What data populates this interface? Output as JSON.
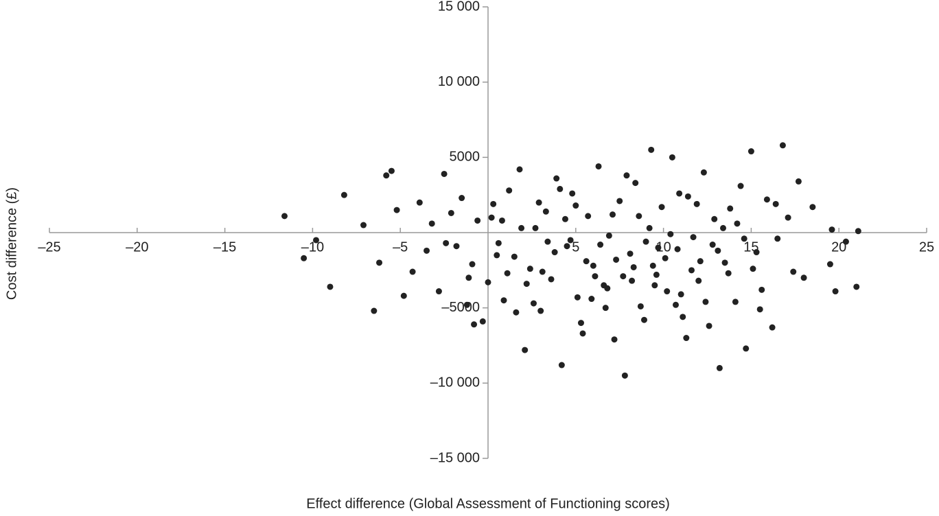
{
  "chart_data": {
    "type": "scatter",
    "x_label": "Effect difference (Global Assessment of Functioning scores)",
    "y_label": "Cost difference (£)",
    "color": "#222222",
    "xlim": [
      -25,
      25
    ],
    "ylim": [
      -15000,
      15000
    ],
    "xticks": [
      {
        "value": -25,
        "label": "–25"
      },
      {
        "value": -20,
        "label": "–20"
      },
      {
        "value": -15,
        "label": "–15"
      },
      {
        "value": -10,
        "label": "–10"
      },
      {
        "value": -5,
        "label": "–5"
      },
      5,
      10,
      15,
      20,
      25
    ],
    "yticks": [
      {
        "value": 15000,
        "label": "15 000"
      },
      {
        "value": 10000,
        "label": "10 000"
      },
      5000,
      {
        "value": -5000,
        "label": "–5000"
      },
      {
        "value": -10000,
        "label": "–10 000"
      },
      {
        "value": -15000,
        "label": "–15 000"
      }
    ],
    "x": [
      -11.6,
      -10.5,
      -9,
      -8.2,
      -9.8,
      -7.1,
      -6.5,
      -6.2,
      -5.5,
      -5.8,
      -5.2,
      -4.8,
      -4.3,
      -3.9,
      -3.5,
      -3.2,
      -2.8,
      -2.5,
      -2.1,
      -1.8,
      -1.5,
      -1.2,
      -0.9,
      -0.6,
      -0.3,
      0,
      0.3,
      0.6,
      0.9,
      1.2,
      1.5,
      1.8,
      2.1,
      2.4,
      2.7,
      3,
      3.3,
      3.6,
      3.9,
      4.2,
      4.5,
      4.8,
      5.1,
      5.4,
      5.7,
      6,
      6.3,
      6.6,
      6.9,
      7.2,
      7.5,
      7.8,
      8.1,
      8.4,
      8.7,
      9,
      9.3,
      9.6,
      9.9,
      10.2,
      10.5,
      10.8,
      11.1,
      11.4,
      11.7,
      12,
      12.3,
      12.6,
      12.9,
      13.2,
      13.5,
      13.8,
      14.1,
      14.4,
      14.7,
      15,
      15.3,
      15.6,
      15.9,
      16.2,
      16.5,
      16.8,
      17.1,
      17.4,
      17.7,
      18,
      18.5,
      19.5,
      19.8,
      20.4,
      21,
      21.1,
      19.6,
      -0.8,
      0.5,
      1.9,
      3.1,
      4.4,
      5.6,
      6.8,
      7.1,
      8.3,
      9.2,
      10.1,
      11,
      11.9,
      12.8,
      13.7,
      14.6,
      15.5,
      2.2,
      3.8,
      5.3,
      6.4,
      7.7,
      8.9,
      10.4,
      11.6,
      12.4,
      14.2,
      0.8,
      2.6,
      4.1,
      5.9,
      7.3,
      8.6,
      9.5,
      10.9,
      12.1,
      13.1,
      1.1,
      2.9,
      4.7,
      6.1,
      7.9,
      9.7,
      11.3,
      13.4,
      15.1,
      16.4,
      -2.4,
      -1.1,
      0.2,
      1.6,
      3.4,
      5.0,
      6.7,
      8.2,
      9.4,
      10.7
    ],
    "y": [
      1100,
      -1700,
      -3600,
      2500,
      -500,
      500,
      -5200,
      -2000,
      4100,
      3800,
      1500,
      -4200,
      -2600,
      2000,
      -1200,
      600,
      -3900,
      3900,
      1300,
      -900,
      2300,
      -4800,
      -2100,
      800,
      -5900,
      -3300,
      1900,
      -700,
      -4500,
      2800,
      -1600,
      4200,
      -7800,
      -2400,
      300,
      -5200,
      1400,
      -3100,
      3600,
      -8800,
      -900,
      2600,
      -4300,
      -6700,
      1100,
      -2200,
      4400,
      -3500,
      -200,
      -7100,
      2100,
      -9500,
      -1400,
      3300,
      -4900,
      -600,
      5500,
      -2800,
      1700,
      -3900,
      5000,
      -1100,
      -5600,
      2400,
      -300,
      -3200,
      4000,
      -6200,
      900,
      -9000,
      -2000,
      1600,
      -4600,
      3100,
      -7700,
      5400,
      -1300,
      -3800,
      2200,
      -6300,
      -400,
      5800,
      1000,
      -2600,
      3400,
      -3000,
      1700,
      -2100,
      -3900,
      -600,
      -3600,
      100,
      200,
      -6100,
      -1500,
      300,
      -2600,
      900,
      -1900,
      -3700,
      1200,
      -2300,
      300,
      -1700,
      -4100,
      1900,
      -800,
      -2700,
      -400,
      -5100,
      -3400,
      -1300,
      -6000,
      -800,
      -2900,
      -5800,
      -100,
      -2500,
      -4600,
      600,
      800,
      -4700,
      2900,
      -4400,
      -1800,
      1100,
      -3500,
      2600,
      -1900,
      -1200,
      -2700,
      2000,
      -500,
      -2900,
      3800,
      -1000,
      -7000,
      300,
      -2400,
      1900,
      -700,
      -3000,
      1000,
      -5300,
      -600,
      1800,
      -5000,
      -3200,
      -2200,
      -4800
    ]
  }
}
